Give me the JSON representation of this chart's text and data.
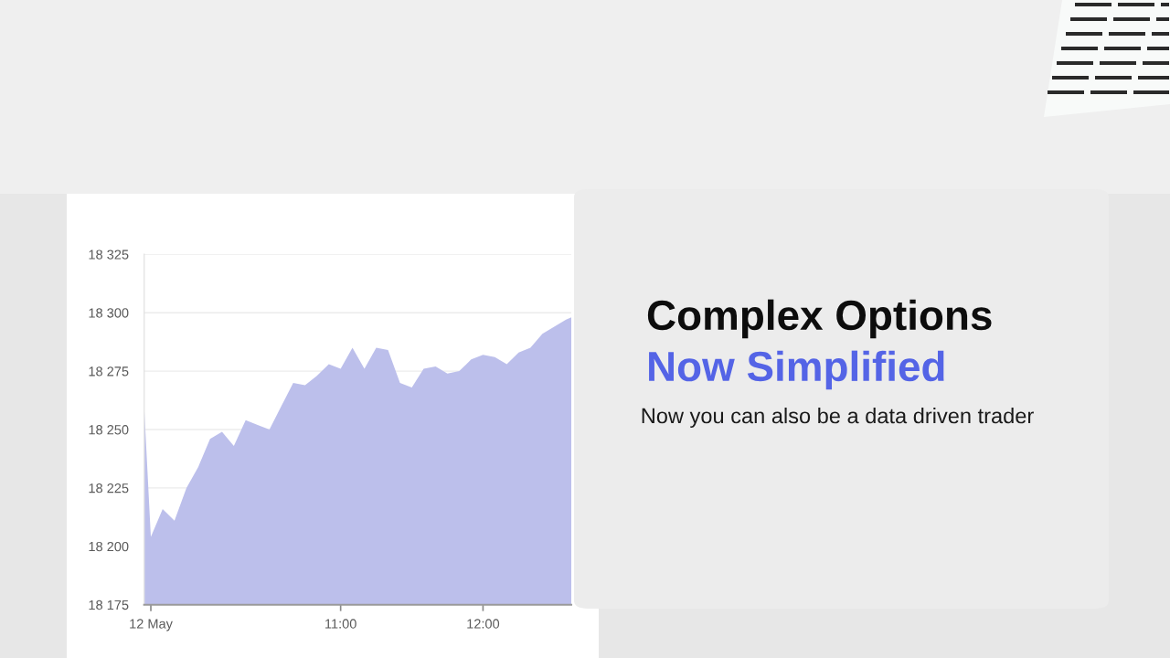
{
  "chart_data": {
    "type": "area",
    "title": "Complex Options",
    "subtitle": "Now Simplified",
    "annotations": [
      "Now you can also be a data driven trader"
    ],
    "x": [
      9.62,
      9.667,
      9.75,
      9.833,
      9.917,
      10,
      10.083,
      10.167,
      10.25,
      10.333,
      10.417,
      10.5,
      10.583,
      10.667,
      10.75,
      10.833,
      10.917,
      11,
      11.083,
      11.167,
      11.25,
      11.333,
      11.417,
      11.5,
      11.583,
      11.667,
      11.75,
      11.833,
      11.917,
      12,
      12.083,
      12.167,
      12.25,
      12.333,
      12.417,
      12.5,
      12.583,
      12.62
    ],
    "series": [
      {
        "color": "#bcbfeb",
        "values": [
          18260,
          18204,
          18216,
          18211,
          18225,
          18234,
          18246,
          18249,
          18243,
          18254,
          18252,
          18250,
          18260,
          18270,
          18269,
          18273,
          18278,
          18276,
          18285,
          18276,
          18285,
          18284,
          18270,
          18268,
          18276,
          18277,
          18274,
          18275,
          18280,
          18282,
          18281,
          18278,
          18283,
          18285,
          18291,
          18294,
          18297,
          18298
        ]
      }
    ],
    "xlim": [
      9.62,
      12.62
    ],
    "xticks": [
      {
        "value": 9.667,
        "label": "12 May"
      },
      {
        "value": 11,
        "label": "11:00"
      },
      {
        "value": 12,
        "label": "12:00"
      }
    ],
    "ylim": [
      18175,
      18325
    ],
    "yticks": [
      {
        "value": 18175,
        "label": "18 175"
      },
      {
        "value": 18200,
        "label": "18 200"
      },
      {
        "value": 18225,
        "label": "18 225"
      },
      {
        "value": 18250,
        "label": "18 250"
      },
      {
        "value": 18275,
        "label": "18 275"
      },
      {
        "value": 18300,
        "label": "18 300"
      },
      {
        "value": 18325,
        "label": "18 325"
      }
    ],
    "grid": "y"
  }
}
